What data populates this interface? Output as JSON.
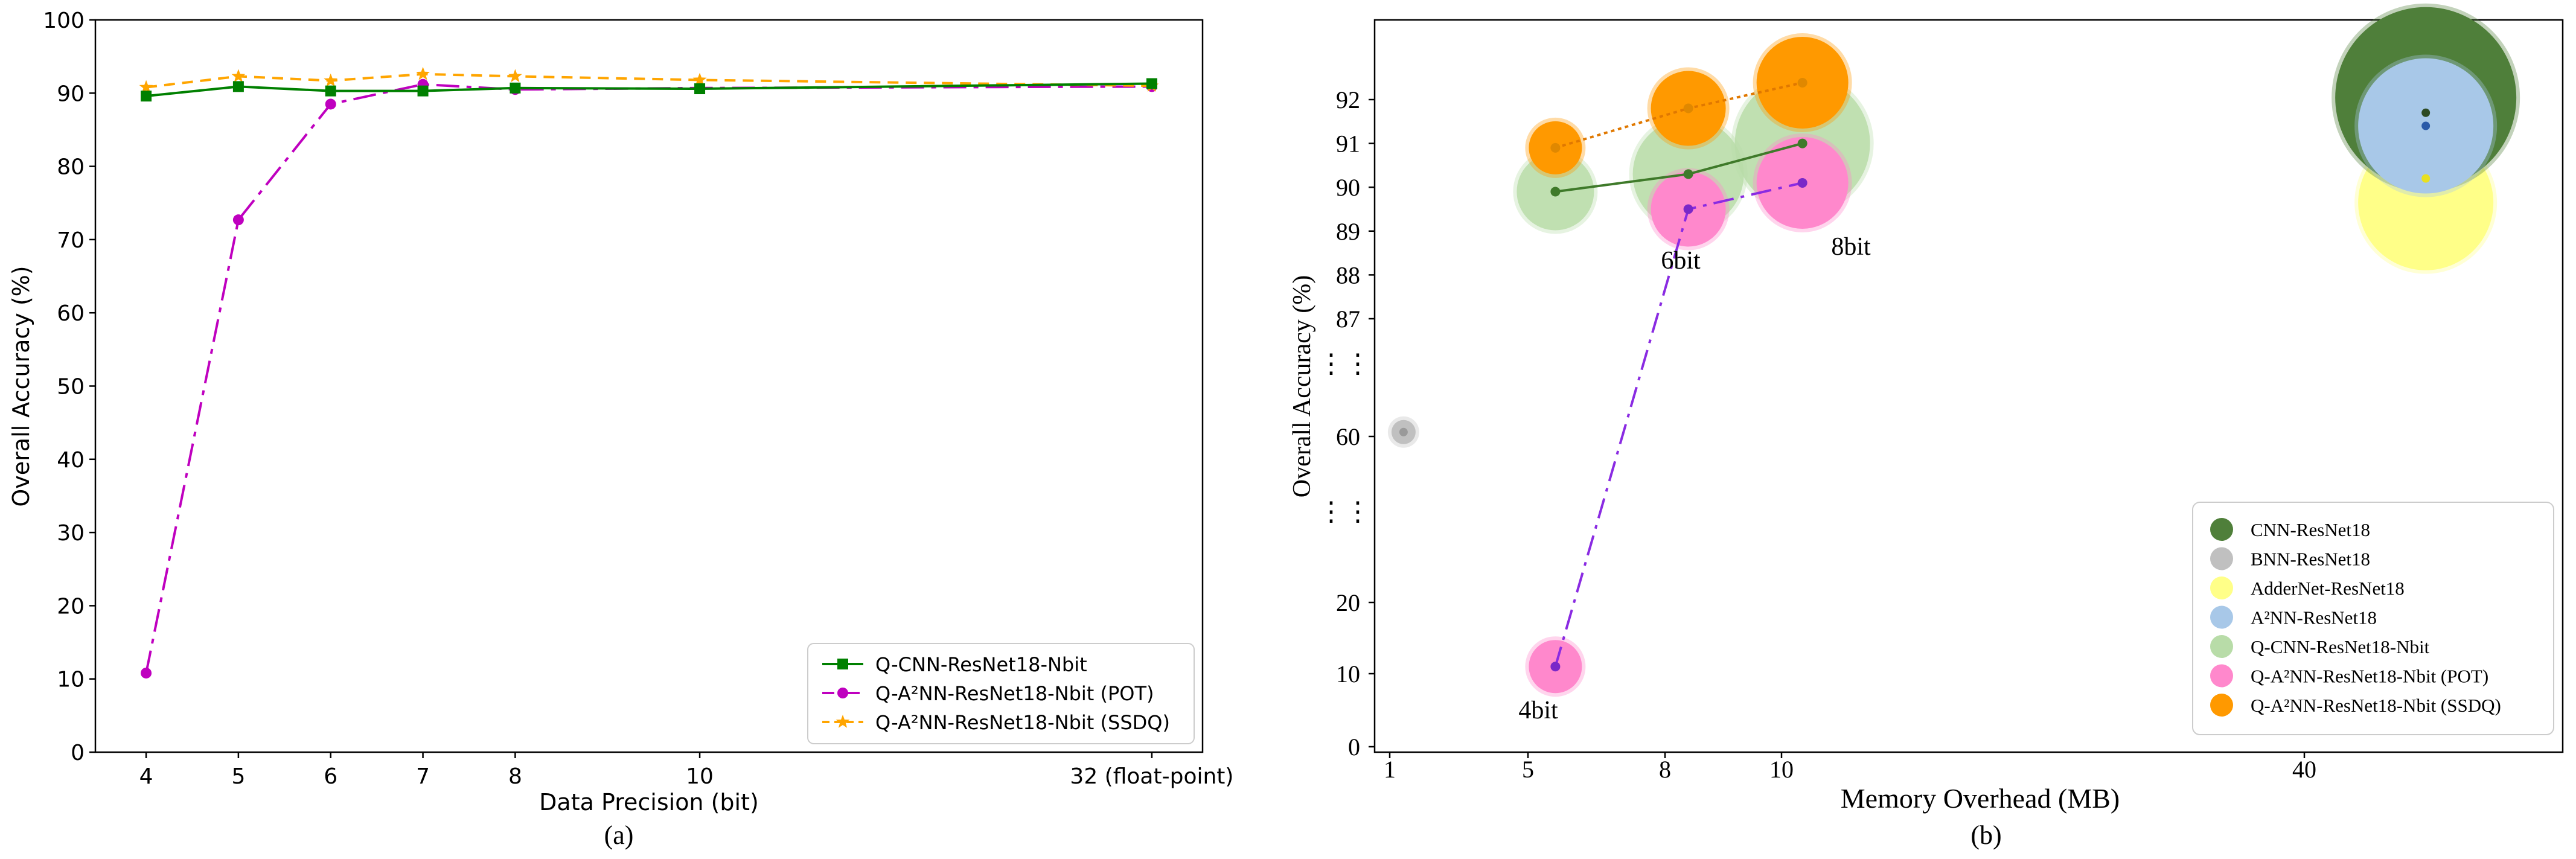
{
  "chart_data": [
    {
      "type": "line",
      "caption": "(a)",
      "xlabel": "Data Precision (bit)",
      "ylabel": "Overall Accuracy (%)",
      "ylim": [
        0,
        100
      ],
      "yticks": [
        "0",
        "10",
        "20",
        "30",
        "40",
        "50",
        "60",
        "70",
        "80",
        "90",
        "100"
      ],
      "categories": [
        "4",
        "5",
        "6",
        "7",
        "8",
        "10",
        "32 (float-point)"
      ],
      "x_positions": [
        4,
        5,
        6,
        7,
        8,
        10,
        14.9
      ],
      "xlim": [
        3.45,
        15.45
      ],
      "series": [
        {
          "name": "Q-CNN-ResNet18-Nbit",
          "color": "#008000",
          "marker": "square",
          "dash": "",
          "values": [
            89.6,
            90.9,
            90.3,
            90.3,
            90.7,
            90.6,
            91.3
          ]
        },
        {
          "name": "Q-A²NN-ResNet18-Nbit (POT)",
          "color": "#bf00bf",
          "marker": "circle",
          "dash": "38 12 8 12",
          "values": [
            10.8,
            72.7,
            88.5,
            91.2,
            90.5,
            90.7,
            90.9
          ]
        },
        {
          "name": "Q-A²NN-ResNet18-Nbit (SSDQ)",
          "color": "#ffa500",
          "marker": "star",
          "dash": "18 12",
          "values": [
            90.8,
            92.3,
            91.7,
            92.6,
            92.3,
            91.8,
            91.0
          ]
        }
      ],
      "legend_position": "lower-right"
    },
    {
      "type": "scatter",
      "caption": "(b)",
      "xlabel": "Memory Overhead (MB)",
      "ylabel": "Overall Accuracy (%)",
      "xticks": [
        "1",
        "5",
        "8",
        "10",
        "40"
      ],
      "yticks": [
        "0",
        "10",
        "20",
        "60",
        "87",
        "88",
        "89",
        "90",
        "91",
        "92"
      ],
      "axis_break_markers": [
        "⋮⋮",
        "⋮⋮"
      ],
      "point_labels": [
        "4bit",
        "6bit",
        "8bit"
      ],
      "series": [
        {
          "name": "CNN-ResNet18",
          "color": "#4f7f3a",
          "points": [
            {
              "mb": 44.7,
              "acc": 91.7
            }
          ]
        },
        {
          "name": "BNN-ResNet18",
          "color": "#c0c0c0",
          "points": [
            {
              "mb": 1.4,
              "acc": 61.0
            }
          ]
        },
        {
          "name": "AdderNet-ResNet18",
          "color": "#ffff88",
          "points": [
            {
              "mb": 44.7,
              "acc": 90.2
            }
          ]
        },
        {
          "name": "A²NN-ResNet18",
          "color": "#a8c8e8",
          "points": [
            {
              "mb": 44.7,
              "acc": 91.4
            }
          ]
        },
        {
          "name": "Q-CNN-ResNet18-Nbit",
          "color": "#b8dca8",
          "points": [
            {
              "bits": 4,
              "mb": 5.6,
              "acc": 89.9
            },
            {
              "bits": 6,
              "mb": 8.4,
              "acc": 90.3
            },
            {
              "bits": 8,
              "mb": 11.2,
              "acc": 91.0
            }
          ]
        },
        {
          "name": "Q-A²NN-ResNet18-Nbit (POT)",
          "color": "#ff88cc",
          "points": [
            {
              "bits": 4,
              "mb": 5.6,
              "acc": 11.0
            },
            {
              "bits": 6,
              "mb": 8.4,
              "acc": 89.5
            },
            {
              "bits": 8,
              "mb": 11.2,
              "acc": 90.1
            }
          ]
        },
        {
          "name": "Q-A²NN-ResNet18-Nbit (SSDQ)",
          "color": "#ff9900",
          "points": [
            {
              "bits": 4,
              "mb": 5.6,
              "acc": 90.9
            },
            {
              "bits": 6,
              "mb": 8.4,
              "acc": 91.8
            },
            {
              "bits": 8,
              "mb": 11.2,
              "acc": 92.4
            }
          ]
        }
      ],
      "legend_position": "lower-right"
    }
  ]
}
